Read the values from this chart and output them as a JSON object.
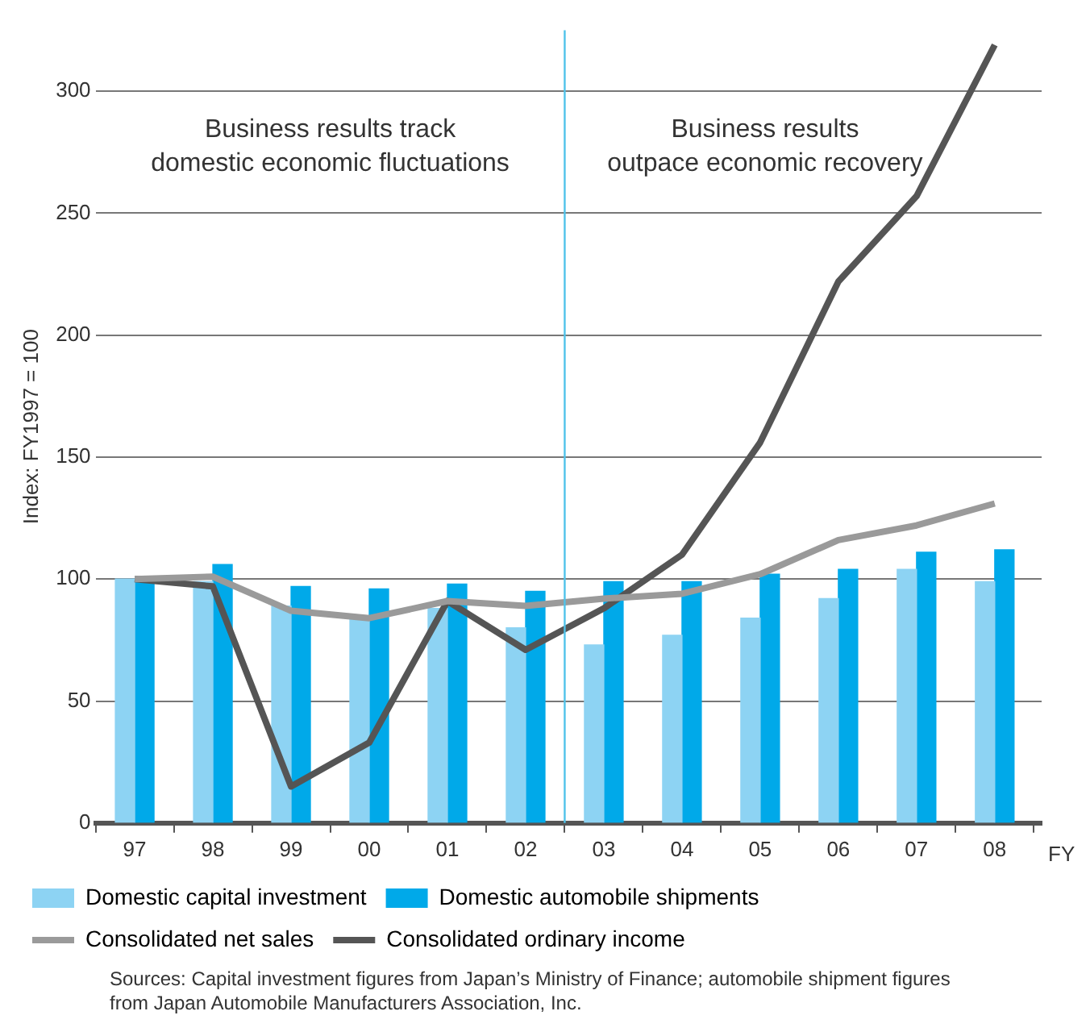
{
  "chart_data": {
    "type": "bar",
    "ylabel": "Index: FY1997 = 100",
    "xlabel": "FY",
    "x": [
      1997,
      1998,
      1999,
      2000,
      2001,
      2002,
      2003,
      2004,
      2005,
      2006,
      2007,
      2008
    ],
    "xlim": [
      1996.5,
      2008.6
    ],
    "xticks": [
      {
        "value": 1997,
        "label": "97"
      },
      {
        "value": 1998,
        "label": "98"
      },
      {
        "value": 1999,
        "label": "99"
      },
      {
        "value": 2000,
        "label": "00"
      },
      {
        "value": 2001,
        "label": "01"
      },
      {
        "value": 2002,
        "label": "02"
      },
      {
        "value": 2003,
        "label": "03"
      },
      {
        "value": 2004,
        "label": "04"
      },
      {
        "value": 2005,
        "label": "05"
      },
      {
        "value": 2006,
        "label": "06"
      },
      {
        "value": 2007,
        "label": "07"
      },
      {
        "value": 2008,
        "label": "08"
      }
    ],
    "ylim": [
      0,
      325
    ],
    "yticks": [
      0,
      50,
      100,
      150,
      200,
      250,
      300
    ],
    "series": [
      {
        "name": "Domestic capital investment",
        "color": "#8dd3f3",
        "values": [
          100,
          99,
          89,
          84,
          88,
          80,
          73,
          77,
          84,
          92,
          104,
          99
        ]
      },
      {
        "name": "Domestic automobile shipments",
        "color": "#00a9e9",
        "values": [
          100,
          106,
          97,
          96,
          98,
          95,
          99,
          99,
          102,
          104,
          111,
          112
        ]
      },
      {
        "name": "Consolidated net sales",
        "type": "line",
        "color": "#9a9a9a",
        "values": [
          100,
          101,
          87,
          84,
          91,
          89,
          92,
          94,
          102,
          116,
          122,
          131
        ]
      },
      {
        "name": "Consolidated ordinary income",
        "type": "line",
        "color": "#555555",
        "values": [
          100,
          97,
          15,
          33,
          91,
          71,
          88,
          110,
          156,
          222,
          257,
          319
        ]
      }
    ],
    "ref_lines": [
      {
        "axis": "x",
        "value": 2002.5,
        "color": "#4fc3ea"
      }
    ],
    "annotations": [
      "Business results track\ndomestic economic fluctuations",
      "Business results\noutpace economic recovery",
      "Sources: Capital investment figures from Japan’s Ministry of Finance; automobile shipment figures\nfrom Japan Automobile Manufacturers Association, Inc."
    ],
    "grid": "y",
    "legend": "bottom",
    "marker": "none",
    "line_style": "solid"
  }
}
